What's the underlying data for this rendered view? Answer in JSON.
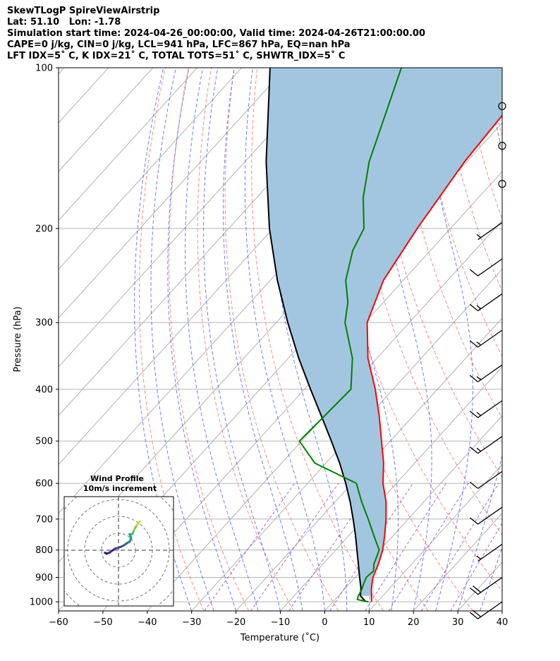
{
  "header": {
    "line1": "SkewTLogP SpireViewAirstrip",
    "line2": "Lat: 51.10   Lon: -1.78",
    "line3": "Simulation start time: 2024-04-26_00:00:00, Valid time: 2024-04-26T21:00:00.00",
    "line4": "CAPE=0 j/kg, CIN=0 j/kg, LCL=941 hPa, LFC=867 hPa, EQ=nan hPa",
    "line5": "LFT IDX=5˚ C, K IDX=21˚ C, TOTAL TOTS=51˚ C, SHWTR_IDX=5˚ C"
  },
  "colors": {
    "temperature": "#ff0000",
    "dewpoint": "#008000",
    "parcel": "#000000",
    "cape_fill": "#a3c6e0",
    "dry_adiabat": "#ff6b6b",
    "moist_adiabat": "#4a5cff",
    "isotherm": "#aaaaaa",
    "isohume": "#9944cc"
  },
  "chart_data": {
    "type": "skewt",
    "xlabel": "Temperature (˚C)",
    "ylabel": "Pressure (hPa)",
    "xlim": [
      -60,
      40
    ],
    "ylim": [
      1040,
      100
    ],
    "x_ticks": [
      -60,
      -50,
      -40,
      -30,
      -20,
      -10,
      0,
      10,
      20,
      30,
      40
    ],
    "y_ticks": [
      100,
      200,
      300,
      400,
      500,
      600,
      700,
      800,
      900,
      1000
    ],
    "temperature": {
      "p": [
        1000,
        975,
        950,
        925,
        900,
        850,
        800,
        750,
        700,
        650,
        600,
        550,
        500,
        450,
        400,
        350,
        300,
        250,
        200,
        150,
        100
      ],
      "t": [
        8.7,
        7.5,
        6.2,
        5.1,
        4.0,
        2.5,
        0.6,
        -2.0,
        -5.0,
        -8.5,
        -13.0,
        -17.0,
        -22.0,
        -27.5,
        -34.0,
        -42.0,
        -49.5,
        -54.5,
        -57.5,
        -60.5,
        -62.5
      ]
    },
    "dewpoint": {
      "p": [
        1000,
        990,
        975,
        950,
        925,
        900,
        875,
        850,
        800,
        750,
        700,
        650,
        600,
        550,
        500,
        450,
        400,
        350,
        300,
        275,
        250,
        220,
        200,
        175,
        150,
        100
      ],
      "t": [
        8.0,
        5.0,
        4.5,
        4.0,
        3.2,
        2.5,
        2.8,
        1.5,
        -0.2,
        -4.5,
        -9.0,
        -14.0,
        -19.0,
        -32.5,
        -40.5,
        -40.0,
        -39.5,
        -45.5,
        -54.5,
        -58.0,
        -63.0,
        -67.5,
        -69.5,
        -76.0,
        -82.0,
        -94.0
      ]
    },
    "parcel": {
      "p": [
        1000,
        975,
        941,
        900,
        850,
        800,
        750,
        700,
        650,
        600,
        550,
        500,
        450,
        400,
        350,
        300,
        250,
        200,
        150,
        100
      ],
      "t": [
        7.4,
        5.0,
        3.4,
        1.0,
        -2.0,
        -5.2,
        -8.6,
        -12.4,
        -16.6,
        -21.4,
        -26.9,
        -33.3,
        -40.5,
        -48.6,
        -57.6,
        -67.4,
        -78.4,
        -90.8,
        -105.2,
        -123.6
      ]
    },
    "wind_barbs": [
      {
        "p": 118,
        "speed": 0
      },
      {
        "p": 140,
        "speed": 0
      },
      {
        "p": 165,
        "speed": 0
      },
      {
        "p": 195,
        "speed": 5
      },
      {
        "p": 228,
        "speed": 10
      },
      {
        "p": 265,
        "speed": 15
      },
      {
        "p": 310,
        "speed": 15
      },
      {
        "p": 360,
        "speed": 15
      },
      {
        "p": 420,
        "speed": 15
      },
      {
        "p": 490,
        "speed": 15
      },
      {
        "p": 570,
        "speed": 10
      },
      {
        "p": 665,
        "speed": 10
      },
      {
        "p": 780,
        "speed": 5
      },
      {
        "p": 900,
        "speed": 20
      },
      {
        "p": 1000,
        "speed": 20
      }
    ],
    "inset": {
      "title": "Wind Profile",
      "subtitle": "10m/s increment",
      "ring_step_ms": 10,
      "hodograph": {
        "u": [
          -8.0,
          -7.0,
          -5.5,
          -4.0,
          -2.0,
          0.0,
          2.5,
          4.0,
          5.5,
          6.5,
          7.0,
          7.5,
          7.0,
          6.5,
          8.0,
          8.5,
          9.0,
          10.0,
          11.0,
          12.5
        ],
        "v": [
          -1.5,
          -2.0,
          -1.5,
          -0.5,
          1.0,
          1.5,
          2.5,
          3.5,
          4.5,
          5.0,
          6.0,
          7.5,
          8.5,
          9.5,
          9.5,
          10.0,
          11.5,
          13.5,
          15.0,
          17.0
        ]
      }
    }
  }
}
